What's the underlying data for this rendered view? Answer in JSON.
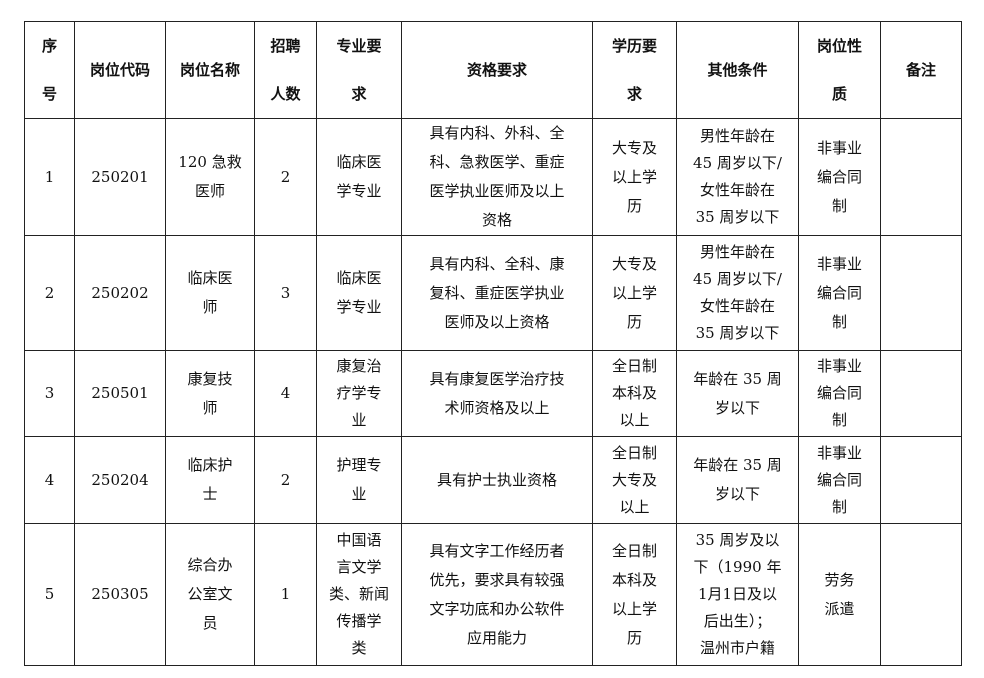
{
  "headers": [
    "序\n号",
    "岗位代码",
    "岗位名称",
    "招聘\n人数",
    "专业要\n求",
    "资格要求",
    "学历要\n求",
    "其他条件",
    "岗位性\n质",
    "备注"
  ],
  "rows": [
    [
      "1",
      "250201",
      "120 急救\n医师",
      "2",
      "临床医\n学专业",
      "具有内科、外科、全\n科、急救医学、重症\n医学执业医师及以上\n资格",
      "大专及\n以上学\n历",
      "男性年龄在\n45 周岁以下/\n女性年龄在\n35 周岁以下",
      "非事业\n编合同\n制",
      ""
    ],
    [
      "2",
      "250202",
      "临床医\n师",
      "3",
      "临床医\n学专业",
      "具有内科、全科、康\n复科、重症医学执业\n医师及以上资格",
      "大专及\n以上学\n历",
      "男性年龄在\n45 周岁以下/\n女性年龄在\n35 周岁以下",
      "非事业\n编合同\n制",
      ""
    ],
    [
      "3",
      "250501",
      "康复技\n师",
      "4",
      "康复治\n疗学专\n业",
      "具有康复医学治疗技\n术师资格及以上",
      "全日制\n本科及\n以上",
      "年龄在 35 周\n岁以下",
      "非事业\n编合同\n制",
      ""
    ],
    [
      "4",
      "250204",
      "临床护\n士",
      "2",
      "护理专\n业",
      "具有护士执业资格",
      "全日制\n大专及\n以上",
      "年龄在 35 周\n岁以下",
      "非事业\n编合同\n制",
      ""
    ],
    [
      "5",
      "250305",
      "综合办\n公室文\n员",
      "1",
      "中国语\n言文学\n类、新闻\n传播学\n类",
      "具有文字工作经历者\n优先，要求具有较强\n文字功底和办公软件\n应用能力",
      "全日制\n本科及\n以上学\n历",
      "35 周岁及以\n下（1990 年\n1月1日及以\n后出生）；\n温州市户籍",
      "劳务\n派遣",
      ""
    ]
  ]
}
